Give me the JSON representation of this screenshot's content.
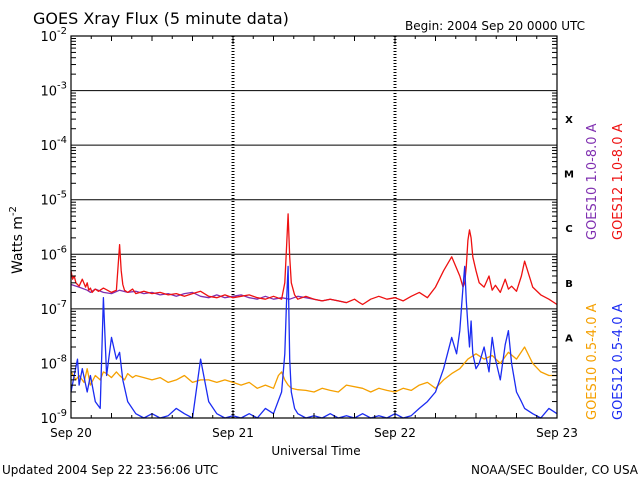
{
  "header": {
    "title": "GOES Xray Flux (5 minute data)",
    "begin": "Begin:  2004 Sep 20 0000 UTC"
  },
  "footer": {
    "updated": "Updated 2004 Sep 22 23:56:06 UTC",
    "credit": "NOAA/SEC Boulder, CO USA"
  },
  "colors": {
    "goes10_long": "#7f2fb0",
    "goes12_long": "#ee1111",
    "goes10_short": "#f5a000",
    "goes12_short": "#1b2cf2"
  },
  "chart_data": {
    "type": "line",
    "title": "GOES Xray Flux (5 minute data)",
    "xlabel": "Universal Time",
    "ylabel": "Watts m^-2",
    "y_scale": "log",
    "ylim": [
      1e-09,
      0.01
    ],
    "y_ticks": [
      {
        "exp": "-9",
        "value": 1e-09
      },
      {
        "exp": "-8",
        "value": 1e-08
      },
      {
        "exp": "-7",
        "value": 1e-07
      },
      {
        "exp": "-6",
        "value": 1e-06
      },
      {
        "exp": "-5",
        "value": 1e-05
      },
      {
        "exp": "-4",
        "value": 0.0001
      },
      {
        "exp": "-3",
        "value": 0.001
      },
      {
        "exp": "-2",
        "value": 0.01
      }
    ],
    "x_ticks": [
      {
        "label": "Sep 20",
        "day": 0
      },
      {
        "label": "Sep 21",
        "day": 1
      },
      {
        "label": "Sep 22",
        "day": 2
      },
      {
        "label": "Sep 23",
        "day": 3
      }
    ],
    "xlim_days": [
      0,
      3
    ],
    "flare_classes": [
      {
        "label": "A",
        "value": 3e-08
      },
      {
        "label": "B",
        "value": 3e-07
      },
      {
        "label": "C",
        "value": 3e-06
      },
      {
        "label": "M",
        "value": 3e-05
      },
      {
        "label": "X",
        "value": 0.0003
      }
    ],
    "grid": true,
    "series_note": "x = days after 2004 Sep 20 0000 UTC",
    "series": [
      {
        "name": "GOES10 1.0-8.0 A",
        "color": "#7f2fb0",
        "x": [
          0.0,
          0.05,
          0.1,
          0.12,
          0.15,
          0.2,
          0.25,
          0.3,
          0.35,
          0.4,
          0.45,
          0.5,
          0.55,
          0.6,
          0.65,
          0.7,
          0.75,
          0.8,
          0.85,
          0.9,
          0.95,
          1.0,
          1.05,
          1.1,
          1.15,
          1.2,
          1.25,
          1.3,
          1.35,
          1.4,
          1.45,
          1.5,
          1.55,
          1.6,
          1.65,
          1.7
        ],
        "y": [
          2.8e-07,
          2.5e-07,
          2.2e-07,
          2e-07,
          2.3e-07,
          2e-07,
          1.9e-07,
          2.2e-07,
          2e-07,
          2.1e-07,
          1.9e-07,
          2e-07,
          1.8e-07,
          1.9e-07,
          1.7e-07,
          1.9e-07,
          2e-07,
          1.7e-07,
          1.6e-07,
          1.8e-07,
          1.6e-07,
          1.7e-07,
          1.8e-07,
          1.6e-07,
          1.5e-07,
          1.7e-07,
          1.5e-07,
          1.6e-07,
          1.5e-07,
          1.7e-07,
          1.6e-07,
          1.5e-07,
          1.4e-07,
          1.5e-07,
          1.4e-07,
          1.3e-07
        ]
      },
      {
        "name": "GOES12 1.0-8.0 A",
        "color": "#ee1111",
        "x": [
          0.0,
          0.01,
          0.02,
          0.03,
          0.05,
          0.07,
          0.09,
          0.1,
          0.11,
          0.12,
          0.13,
          0.15,
          0.17,
          0.2,
          0.25,
          0.28,
          0.3,
          0.31,
          0.32,
          0.33,
          0.35,
          0.38,
          0.4,
          0.45,
          0.5,
          0.55,
          0.6,
          0.65,
          0.7,
          0.75,
          0.8,
          0.85,
          0.9,
          0.95,
          1.0,
          1.05,
          1.1,
          1.15,
          1.2,
          1.25,
          1.3,
          1.32,
          1.33,
          1.34,
          1.35,
          1.36,
          1.38,
          1.4,
          1.45,
          1.5,
          1.55,
          1.6,
          1.65,
          1.7,
          1.75,
          1.78,
          1.8,
          1.85,
          1.9,
          1.95,
          2.0,
          2.05,
          2.1,
          2.15,
          2.2,
          2.25,
          2.3,
          2.35,
          2.4,
          2.42,
          2.43,
          2.44,
          2.45,
          2.46,
          2.47,
          2.48,
          2.5,
          2.52,
          2.55,
          2.58,
          2.6,
          2.62,
          2.65,
          2.68,
          2.7,
          2.72,
          2.75,
          2.78,
          2.8,
          2.85,
          2.9,
          2.95,
          3.0
        ],
        "y": [
          5e-07,
          3.5e-07,
          4e-07,
          3e-07,
          2.6e-07,
          3.5e-07,
          2.5e-07,
          3e-07,
          2.2e-07,
          2.4e-07,
          2e-07,
          2.3e-07,
          2.1e-07,
          2.4e-07,
          2e-07,
          2.2e-07,
          1.5e-06,
          5e-07,
          2.8e-07,
          2.2e-07,
          2e-07,
          2.3e-07,
          1.9e-07,
          2.1e-07,
          1.9e-07,
          2e-07,
          1.8e-07,
          1.9e-07,
          1.7e-07,
          1.9e-07,
          2.1e-07,
          1.7e-07,
          1.6e-07,
          1.8e-07,
          1.6e-07,
          1.7e-07,
          1.8e-07,
          1.6e-07,
          1.5e-07,
          1.7e-07,
          1.5e-07,
          3e-07,
          1.3e-06,
          5.5e-06,
          9e-07,
          3e-07,
          1.8e-07,
          1.5e-07,
          1.7e-07,
          1.5e-07,
          1.4e-07,
          1.5e-07,
          1.4e-07,
          1.3e-07,
          1.5e-07,
          1.3e-07,
          1.2e-07,
          1.5e-07,
          1.7e-07,
          1.5e-07,
          1.6e-07,
          1.4e-07,
          1.7e-07,
          2e-07,
          1.6e-07,
          2.5e-07,
          5e-07,
          9e-07,
          4e-07,
          2.5e-07,
          3e-07,
          6e-07,
          1.8e-06,
          2.8e-06,
          2e-06,
          9e-07,
          5e-07,
          3e-07,
          2.5e-07,
          4e-07,
          2.2e-07,
          2.7e-07,
          2e-07,
          3.5e-07,
          2.3e-07,
          2.6e-07,
          2.1e-07,
          4e-07,
          7.5e-07,
          2.5e-07,
          1.8e-07,
          1.5e-07,
          1.2e-07
        ]
      },
      {
        "name": "GOES10 0.5-4.0 A",
        "color": "#f5a000",
        "x": [
          0.0,
          0.03,
          0.05,
          0.08,
          0.1,
          0.12,
          0.15,
          0.18,
          0.2,
          0.22,
          0.25,
          0.28,
          0.3,
          0.33,
          0.35,
          0.38,
          0.4,
          0.45,
          0.5,
          0.55,
          0.6,
          0.65,
          0.7,
          0.75,
          0.8,
          0.85,
          0.9,
          0.95,
          1.0,
          1.05,
          1.1,
          1.15,
          1.2,
          1.25,
          1.28,
          1.3,
          1.32,
          1.34,
          1.36,
          1.4,
          1.45,
          1.5,
          1.55,
          1.6,
          1.65,
          1.7,
          1.8,
          1.85,
          1.9,
          1.95,
          2.0,
          2.05,
          2.1,
          2.15,
          2.2,
          2.25,
          2.3,
          2.35,
          2.4,
          2.45,
          2.5,
          2.55,
          2.6,
          2.65,
          2.7,
          2.75,
          2.8,
          2.85,
          2.9,
          2.95,
          3.0
        ],
        "y": [
          7e-09,
          5e-09,
          6e-09,
          4.5e-09,
          8e-09,
          4e-09,
          6e-09,
          5e-09,
          7e-09,
          6.5e-09,
          5.5e-09,
          7e-09,
          6e-09,
          5e-09,
          6.5e-09,
          5.5e-09,
          6e-09,
          5.5e-09,
          5e-09,
          5.5e-09,
          4.5e-09,
          5e-09,
          6e-09,
          4.5e-09,
          5e-09,
          5e-09,
          4.5e-09,
          5e-09,
          4.5e-09,
          4e-09,
          4.5e-09,
          3.5e-09,
          4e-09,
          3.5e-09,
          6e-09,
          7e-09,
          5e-09,
          4e-09,
          3.5e-09,
          3.3e-09,
          3.2e-09,
          3e-09,
          3.5e-09,
          3.2e-09,
          3e-09,
          4e-09,
          3.5e-09,
          3e-09,
          3.5e-09,
          3.2e-09,
          3e-09,
          3.5e-09,
          3.2e-09,
          4e-09,
          4.5e-09,
          3.5e-09,
          5e-09,
          6.5e-09,
          8e-09,
          1.2e-08,
          1.5e-08,
          1.2e-08,
          1.4e-08,
          1e-08,
          1.6e-08,
          1.2e-08,
          2e-08,
          1e-08,
          7e-09,
          6e-09,
          6e-09
        ]
      },
      {
        "name": "GOES12 0.5-4.0 A",
        "color": "#1b2cf2",
        "x": [
          0.0,
          0.02,
          0.04,
          0.05,
          0.07,
          0.1,
          0.12,
          0.15,
          0.18,
          0.2,
          0.22,
          0.25,
          0.28,
          0.3,
          0.32,
          0.35,
          0.4,
          0.45,
          0.5,
          0.55,
          0.6,
          0.65,
          0.7,
          0.75,
          0.8,
          0.85,
          0.9,
          0.95,
          1.0,
          1.05,
          1.1,
          1.15,
          1.2,
          1.25,
          1.3,
          1.32,
          1.33,
          1.34,
          1.35,
          1.36,
          1.38,
          1.4,
          1.45,
          1.5,
          1.55,
          1.6,
          1.65,
          1.7,
          1.75,
          1.8,
          1.85,
          1.9,
          1.95,
          2.0,
          2.05,
          2.1,
          2.15,
          2.2,
          2.25,
          2.3,
          2.35,
          2.38,
          2.4,
          2.42,
          2.43,
          2.44,
          2.45,
          2.46,
          2.47,
          2.48,
          2.5,
          2.52,
          2.55,
          2.58,
          2.6,
          2.62,
          2.65,
          2.68,
          2.7,
          2.72,
          2.75,
          2.78,
          2.8,
          2.85,
          2.9,
          2.95,
          3.0
        ],
        "y": [
          3e-09,
          6e-09,
          1.2e-08,
          4e-09,
          8e-09,
          3e-09,
          6e-09,
          2e-09,
          1.5e-09,
          1.6e-07,
          6e-09,
          3e-08,
          1.2e-08,
          1.6e-08,
          5e-09,
          2e-09,
          1.2e-09,
          1e-09,
          1.2e-09,
          1e-09,
          1.1e-09,
          1.5e-09,
          1.2e-09,
          1e-09,
          1.2e-08,
          2e-09,
          1.2e-09,
          1e-09,
          1.1e-09,
          1e-09,
          1.2e-09,
          1e-09,
          1.5e-09,
          1.2e-09,
          3e-09,
          1.5e-08,
          1.3e-07,
          6e-07,
          1.2e-08,
          3e-09,
          1.5e-09,
          1.2e-09,
          1e-09,
          1.1e-09,
          1e-09,
          1.2e-09,
          1e-09,
          1.1e-09,
          1e-09,
          1.2e-09,
          1e-09,
          1.1e-09,
          1e-09,
          1.2e-09,
          1e-09,
          1.1e-09,
          1.5e-09,
          2e-09,
          3e-09,
          8e-09,
          3e-08,
          1.5e-08,
          4e-08,
          2.5e-07,
          6e-07,
          1.4e-07,
          5e-08,
          2e-08,
          6e-08,
          1.5e-08,
          8e-09,
          1e-08,
          2e-08,
          7e-09,
          3e-08,
          1.2e-08,
          5e-09,
          2.2e-08,
          4e-08,
          1e-08,
          3e-09,
          2e-09,
          1.5e-09,
          1.2e-09,
          1e-09,
          1.5e-09,
          1.2e-09
        ]
      }
    ],
    "legend": [
      {
        "label": "GOES10 1.0-8.0 A",
        "color": "#7f2fb0"
      },
      {
        "label": "GOES12 1.0-8.0 A",
        "color": "#ee1111"
      },
      {
        "label": "GOES10 0.5-4.0 A",
        "color": "#f5a000"
      },
      {
        "label": "GOES12 0.5-4.0 A",
        "color": "#1b2cf2"
      }
    ],
    "legend_position": "right"
  }
}
